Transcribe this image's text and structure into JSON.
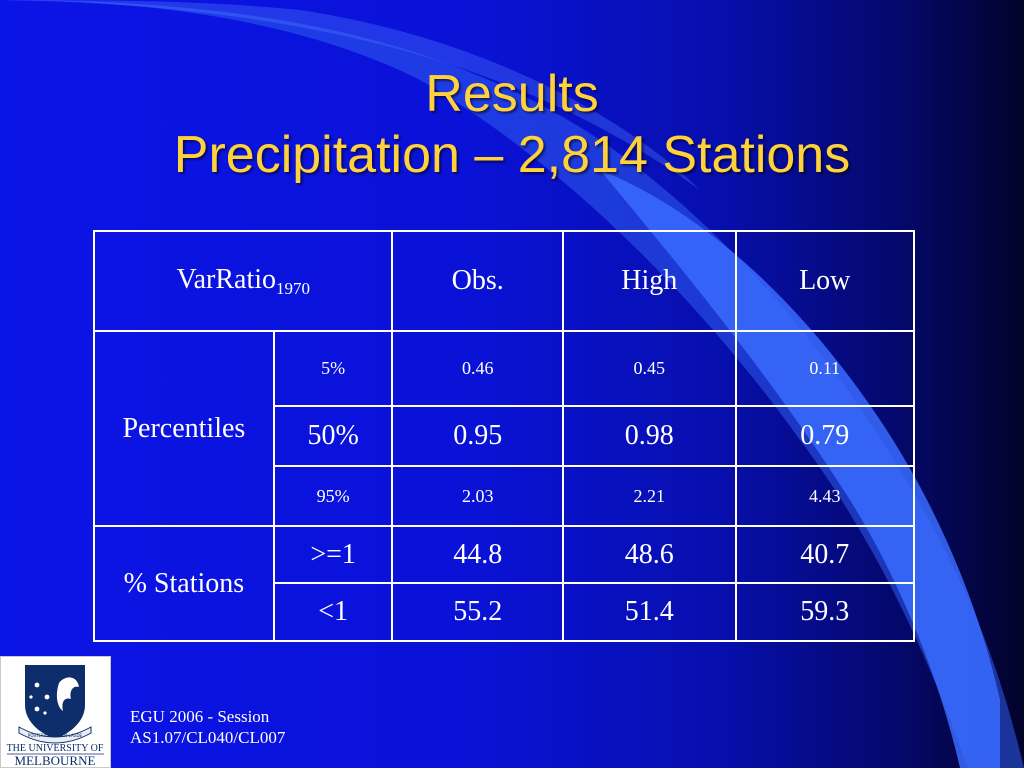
{
  "slide": {
    "title_line1": "Results",
    "title_line2": "Precipitation – 2,814 Stations",
    "accent_color": "#ffd23c",
    "background_color": "#0a12d8"
  },
  "table": {
    "header": {
      "label": "VarRatio",
      "label_sub": "1970",
      "cols": [
        "Obs.",
        "High",
        "Low"
      ]
    },
    "groups": [
      {
        "name": "Percentiles",
        "rows": [
          {
            "key": "5%",
            "values": [
              "0.46",
              "0.45",
              "0.11"
            ]
          },
          {
            "key": "50%",
            "values": [
              "0.95",
              "0.98",
              "0.79"
            ]
          },
          {
            "key": "95%",
            "values": [
              "2.03",
              "2.21",
              "4.43"
            ]
          }
        ]
      },
      {
        "name": "% Stations",
        "rows": [
          {
            "key": ">=1",
            "values": [
              "44.8",
              "48.6",
              "40.7"
            ]
          },
          {
            "key": "<1",
            "values": [
              "55.2",
              "51.4",
              "59.3"
            ]
          }
        ]
      }
    ]
  },
  "logo": {
    "text_line1": "THE UNIVERSITY OF",
    "text_line2": "MELBOURNE",
    "motto": "POSTERA CRESCAM LAUDE"
  },
  "footer": {
    "line1": "EGU 2006 - Session",
    "line2": "AS1.07/CL040/CL007"
  }
}
